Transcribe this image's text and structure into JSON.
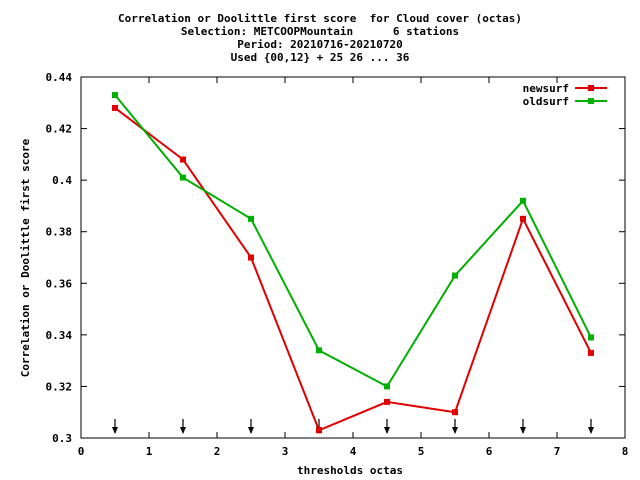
{
  "chart_data": {
    "type": "line",
    "title_lines": [
      "Correlation or Doolittle first score  for Cloud cover (octas)",
      "Selection: METCOOPMountain      6 stations",
      "Period: 20210716-20210720",
      "Used {00,12} + 25 26 ... 36"
    ],
    "xlabel": "thresholds octas",
    "ylabel": "Correlation or Doolittle first score",
    "xlim": [
      0,
      8
    ],
    "ylim": [
      0.3,
      0.44
    ],
    "x_ticks": [
      "0",
      "1",
      "2",
      "3",
      "4",
      "5",
      "6",
      "7",
      "8"
    ],
    "y_ticks": [
      "0.3",
      "0.32",
      "0.34",
      "0.36",
      "0.38",
      "0.4",
      "0.42",
      "0.44"
    ],
    "grid": false,
    "legend_position": "top-right",
    "x": [
      0.5,
      1.5,
      2.5,
      3.5,
      4.5,
      5.5,
      6.5,
      7.5
    ],
    "series": [
      {
        "name": "newsurf",
        "color": "#e00000",
        "values": [
          0.428,
          0.408,
          0.37,
          0.303,
          0.314,
          0.31,
          0.385,
          0.333
        ]
      },
      {
        "name": "oldsurf",
        "color": "#00b000",
        "values": [
          0.433,
          0.401,
          0.385,
          0.334,
          0.32,
          0.363,
          0.392,
          0.339
        ]
      }
    ],
    "arrow_markers_x": [
      0.5,
      1.5,
      2.5,
      3.5,
      4.5,
      5.5,
      6.5,
      7.5
    ]
  }
}
